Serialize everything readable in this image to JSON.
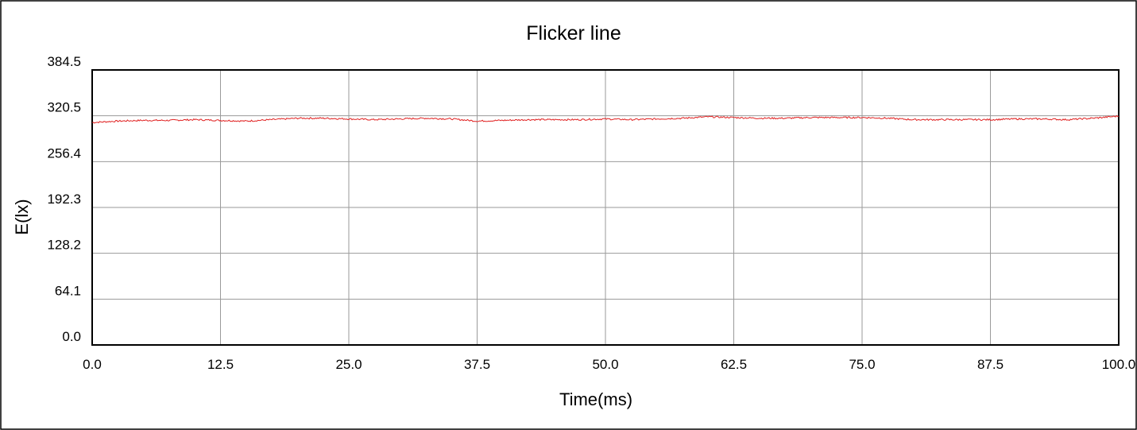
{
  "chart_data": {
    "type": "line",
    "title": "Flicker line",
    "xlabel": "Time(ms)",
    "ylabel": "E(lx)",
    "xlim": [
      0,
      100
    ],
    "ylim": [
      0,
      384.5
    ],
    "x_ticks": [
      "0.0",
      "12.5",
      "25.0",
      "37.5",
      "50.0",
      "62.5",
      "75.0",
      "87.5",
      "100.0"
    ],
    "y_ticks": [
      "0.0",
      "64.1",
      "128.2",
      "192.3",
      "256.4",
      "320.5",
      "384.5"
    ],
    "grid": true,
    "line_color": "#e02020",
    "series": [
      {
        "x": [
          0,
          2.5,
          5,
          7.5,
          10,
          12.5,
          15,
          17.5,
          20,
          22.5,
          25,
          27.5,
          30,
          32.5,
          35,
          37.5,
          40,
          42.5,
          45,
          47.5,
          50,
          52.5,
          55,
          57.5,
          60,
          62.5,
          65,
          67.5,
          70,
          72.5,
          75,
          77.5,
          80,
          82.5,
          85,
          87.5,
          90,
          92.5,
          95,
          97.5,
          100
        ],
        "values": [
          311,
          313,
          314,
          314,
          315,
          314,
          313,
          315,
          317,
          317,
          316,
          315,
          316,
          317,
          316,
          313,
          314,
          315,
          315,
          315,
          316,
          315,
          316,
          317,
          319,
          318,
          317,
          317,
          318,
          318,
          318,
          317,
          315,
          315,
          315,
          315,
          316,
          316,
          315,
          317,
          320
        ]
      }
    ]
  }
}
